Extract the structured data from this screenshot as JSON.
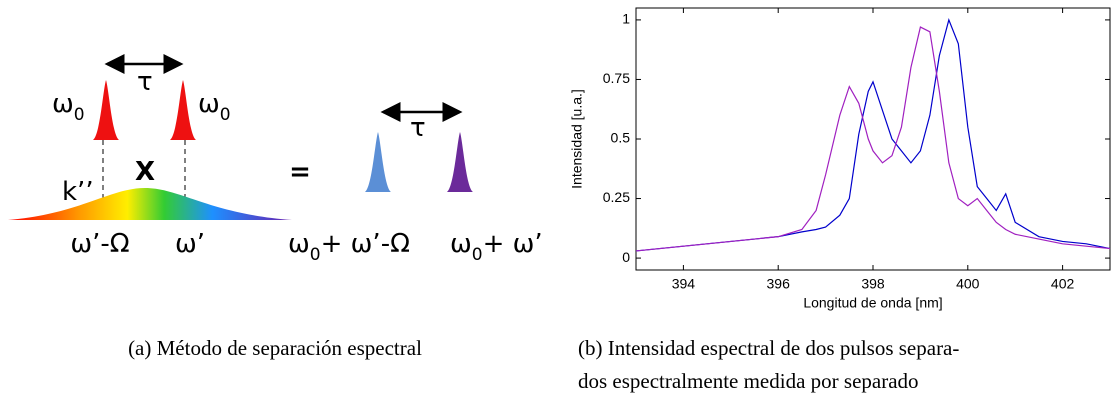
{
  "diagram": {
    "pulse_left_label": {
      "main": "ω",
      "sub": "0"
    },
    "delay_top": "τ",
    "pulse_right_label": {
      "main": "ω",
      "sub": "0"
    },
    "times": "X",
    "dispersion": "k’’",
    "freq_shifted": "ω’-Ω",
    "freq": "ω’",
    "equals": "=",
    "delay_out": "τ",
    "out_left_label": {
      "main": "ω",
      "sub": "0",
      "after": "+ ω’-Ω"
    },
    "out_right_label": {
      "main": "ω",
      "sub": "0",
      "after": "+ ω’"
    }
  },
  "chart_data": {
    "type": "line",
    "x_label": "Longitud de onda [nm]",
    "y_label": "Intensidad [u.a.]",
    "x": [
      393,
      393.5,
      394,
      394.5,
      395,
      395.5,
      396,
      396.5,
      396.8,
      397,
      397.3,
      397.5,
      397.7,
      397.9,
      398,
      398.2,
      398.4,
      398.6,
      398.8,
      399,
      399.2,
      399.4,
      399.6,
      399.8,
      400,
      400.2,
      400.4,
      400.6,
      400.8,
      401,
      401.5,
      402,
      402.5,
      403
    ],
    "series": [
      {
        "color": "#0000cc",
        "values": [
          0.03,
          0.04,
          0.05,
          0.06,
          0.07,
          0.08,
          0.09,
          0.11,
          0.12,
          0.13,
          0.18,
          0.25,
          0.52,
          0.7,
          0.74,
          0.62,
          0.5,
          0.45,
          0.4,
          0.45,
          0.6,
          0.85,
          1.0,
          0.9,
          0.55,
          0.3,
          0.25,
          0.2,
          0.27,
          0.15,
          0.09,
          0.07,
          0.06,
          0.04
        ]
      },
      {
        "color": "#a020c0",
        "values": [
          0.03,
          0.04,
          0.05,
          0.06,
          0.07,
          0.08,
          0.09,
          0.12,
          0.2,
          0.35,
          0.6,
          0.72,
          0.65,
          0.5,
          0.45,
          0.4,
          0.43,
          0.55,
          0.8,
          0.97,
          0.95,
          0.7,
          0.4,
          0.25,
          0.22,
          0.25,
          0.2,
          0.15,
          0.12,
          0.1,
          0.08,
          0.06,
          0.05,
          0.04
        ]
      }
    ],
    "xlim": [
      393,
      403
    ],
    "xticks": [
      394,
      396,
      398,
      400,
      402
    ],
    "ylim": [
      -0.05,
      1.05
    ],
    "yticks": [
      0,
      0.25,
      0.5,
      0.75,
      1
    ]
  },
  "captions": {
    "a": "(a) Método de separación espectral",
    "b": [
      "(b) Intensidad espectral de dos pulsos separa-",
      "dos espectralmente medida por separado"
    ]
  }
}
